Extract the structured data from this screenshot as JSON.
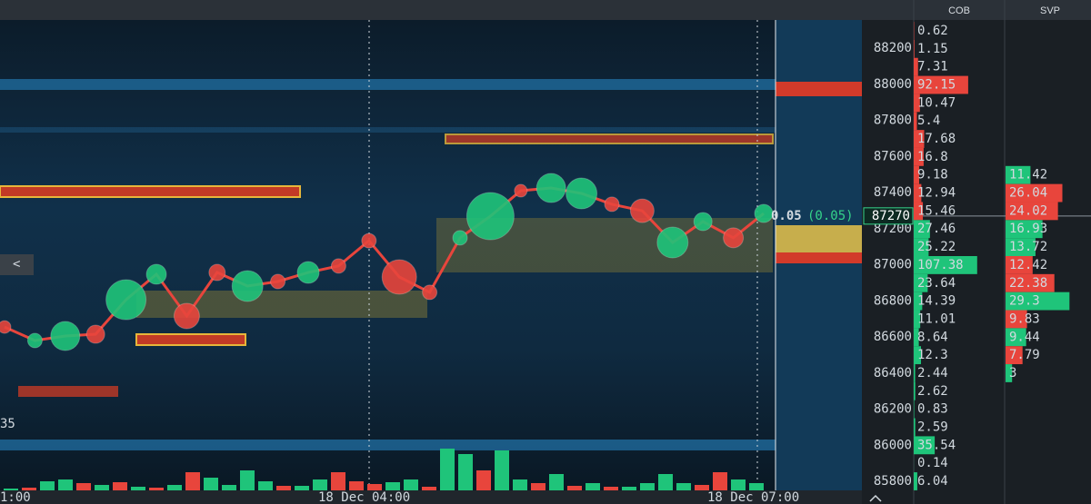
{
  "header": {
    "columns": [
      "COB",
      "SVP"
    ]
  },
  "price_axis": {
    "ticks": [
      88200,
      88000,
      87800,
      87600,
      87400,
      87200,
      87000,
      86800,
      86600,
      86400,
      86200,
      86000,
      85800
    ],
    "current_price": 87270
  },
  "cob": {
    "values": [
      0.62,
      1.15,
      7.31,
      92.15,
      10.47,
      5.4,
      17.68,
      16.8,
      9.18,
      12.94,
      15.46,
      27.46,
      25.22,
      107.38,
      23.64,
      14.39,
      11.01,
      8.64,
      12.3,
      2.44,
      2.62,
      0.83,
      2.59,
      35.54,
      0.14,
      6.04
    ]
  },
  "svp": {
    "values": [
      11.42,
      26.04,
      24.02,
      16.93,
      13.72,
      12.42,
      22.38,
      29.3,
      9.83,
      9.44,
      7.79,
      3
    ],
    "colors": [
      "#1fc47a",
      "#e8453c",
      "#e8453c",
      "#1fc47a",
      "#1fc47a",
      "#e8453c",
      "#e8453c",
      "#1fc47a",
      "#e8453c",
      "#1fc47a",
      "#e8453c",
      "#1fc47a"
    ]
  },
  "time_axis": {
    "labels": [
      "1:00",
      "18 Dec 04:00",
      "18 Dec 07:00"
    ]
  },
  "last_trade": {
    "size": "0.05",
    "change": "(0.05)"
  },
  "left_label": "35",
  "back_button": "<",
  "bubbles": {
    "price": [
      86655,
      86580,
      86605,
      86615,
      86806,
      86947,
      86716,
      86957,
      86882,
      86907,
      86957,
      86993,
      87133,
      86932,
      86847,
      87149,
      87269,
      87410,
      87425,
      87395,
      87335,
      87299,
      87123,
      87239,
      87149,
      87284
    ],
    "size": [
      7,
      8,
      16,
      10,
      22,
      11,
      14,
      9,
      17,
      8,
      12,
      8,
      8,
      19,
      8,
      8,
      26,
      7,
      16,
      17,
      8,
      13,
      17,
      10,
      11,
      10
    ],
    "colors": [
      "#e8453c",
      "#1fc47a",
      "#1fc47a",
      "#e8453c",
      "#1fc47a",
      "#1fc47a",
      "#e8453c",
      "#e8453c",
      "#1fc47a",
      "#e8453c",
      "#1fc47a",
      "#e8453c",
      "#e8453c",
      "#e8453c",
      "#e8453c",
      "#1fc47a",
      "#1fc47a",
      "#e8453c",
      "#1fc47a",
      "#1fc47a",
      "#e8453c",
      "#e8453c",
      "#1fc47a",
      "#1fc47a",
      "#e8453c",
      "#1fc47a"
    ]
  },
  "volume": {
    "values": [
      2,
      3,
      10,
      12,
      8,
      6,
      9,
      4,
      3,
      6,
      20,
      14,
      6,
      22,
      10,
      5,
      5,
      12,
      20,
      10,
      7,
      9,
      12,
      4,
      46,
      40,
      22,
      44,
      12,
      8,
      18,
      5,
      8,
      4,
      4,
      8,
      18,
      8,
      6,
      20,
      12,
      8
    ],
    "colors": [
      "#1fc47a",
      "#e8453c",
      "#1fc47a",
      "#1fc47a",
      "#e8453c",
      "#1fc47a",
      "#e8453c",
      "#1fc47a",
      "#e8453c",
      "#1fc47a",
      "#e8453c",
      "#1fc47a",
      "#1fc47a",
      "#1fc47a",
      "#1fc47a",
      "#e8453c",
      "#1fc47a",
      "#1fc47a",
      "#e8453c",
      "#e8453c",
      "#e8453c",
      "#1fc47a",
      "#1fc47a",
      "#e8453c",
      "#1fc47a",
      "#1fc47a",
      "#e8453c",
      "#1fc47a",
      "#1fc47a",
      "#e8453c",
      "#1fc47a",
      "#e8453c",
      "#1fc47a",
      "#e8453c",
      "#1fc47a",
      "#1fc47a",
      "#1fc47a",
      "#1fc47a",
      "#e8453c",
      "#e8453c",
      "#1fc47a",
      "#1fc47a"
    ]
  }
}
